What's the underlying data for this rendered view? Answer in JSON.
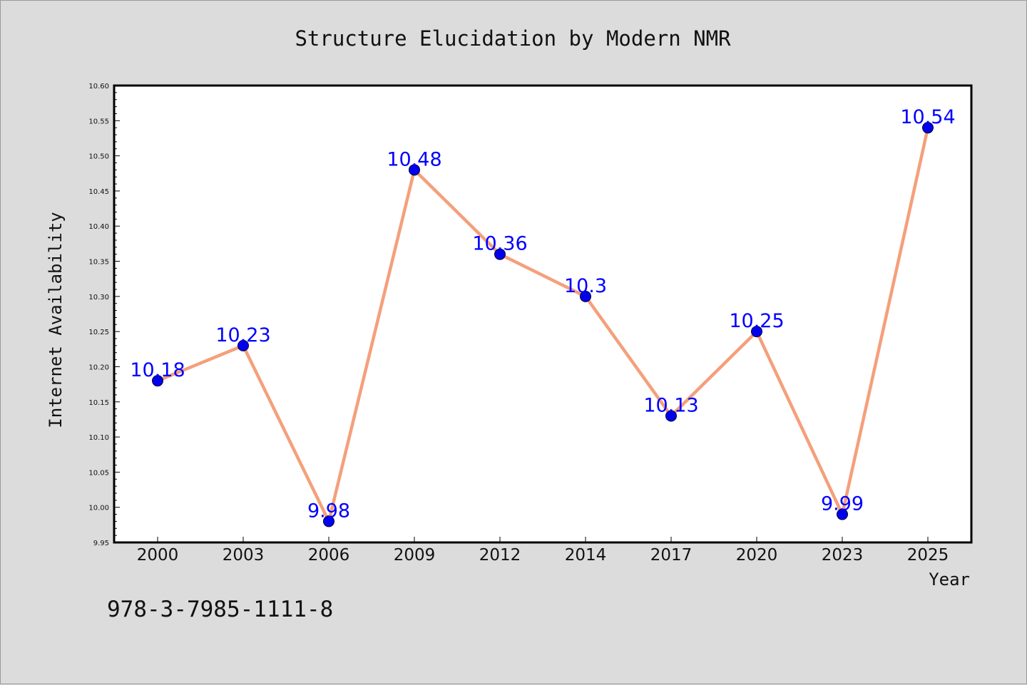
{
  "chart_data": {
    "type": "line",
    "title": "Structure Elucidation by Modern NMR",
    "xlabel": "Year",
    "ylabel": "Internet Availability",
    "categories": [
      "2000",
      "2003",
      "2006",
      "2009",
      "2012",
      "2014",
      "2017",
      "2020",
      "2023",
      "2025"
    ],
    "series": [
      {
        "values": [
          10.18,
          10.23,
          9.98,
          10.48,
          10.36,
          10.3,
          10.13,
          10.25,
          9.99,
          10.54
        ],
        "data_labels": [
          "10.18",
          "10.23",
          "9.98",
          "10.48",
          "10.36",
          "10.3",
          "10.13",
          "10.25",
          "9.99",
          "10.54"
        ]
      }
    ],
    "ylim": [
      9.95,
      10.6
    ],
    "yticks": [
      "9.95",
      "10.00",
      "10.05",
      "10.10",
      "10.15",
      "10.20",
      "10.25",
      "10.30",
      "10.35",
      "10.40",
      "10.45",
      "10.50",
      "10.55",
      "10.60"
    ],
    "grid": false,
    "legend": "none",
    "colors": {
      "line": "#f4a07c",
      "marker": "#0000ee",
      "data_label": "#0000ff",
      "plot_background": "#ffffff",
      "figure_background": "#dcdcdc"
    }
  },
  "annotation": "978-3-7985-1111-8"
}
